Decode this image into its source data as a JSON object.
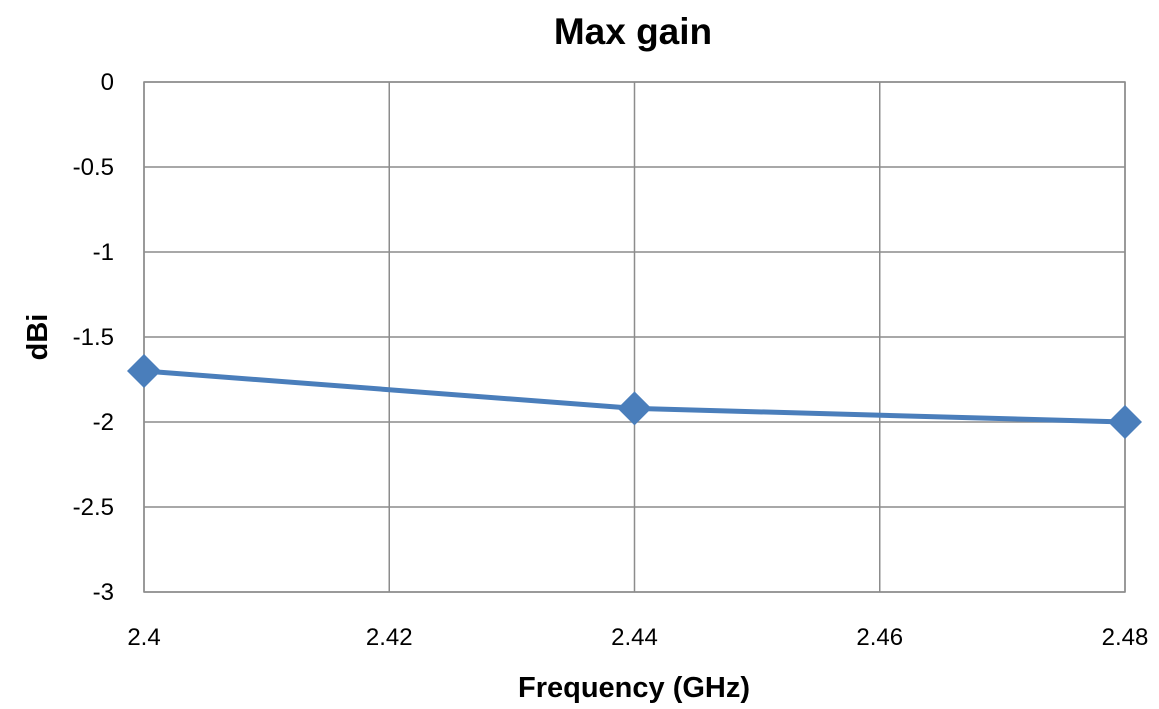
{
  "chart_data": {
    "type": "line",
    "title": "Max gain",
    "xlabel": "Frequency (GHz)",
    "ylabel": "dBi",
    "xlim": [
      2.4,
      2.48
    ],
    "ylim": [
      -3,
      0
    ],
    "x_ticks": [
      "2.4",
      "2.42",
      "2.44",
      "2.46",
      "2.48"
    ],
    "y_ticks": [
      "0",
      "-0.5",
      "-1",
      "-1.5",
      "-2",
      "-2.5",
      "-3"
    ],
    "grid": true,
    "legend": "none",
    "series": [
      {
        "color": "#4a7ebb",
        "marker": "diamond",
        "x": [
          2.4,
          2.44,
          2.48
        ],
        "y": [
          -1.7,
          -1.92,
          -2.0
        ]
      }
    ]
  }
}
